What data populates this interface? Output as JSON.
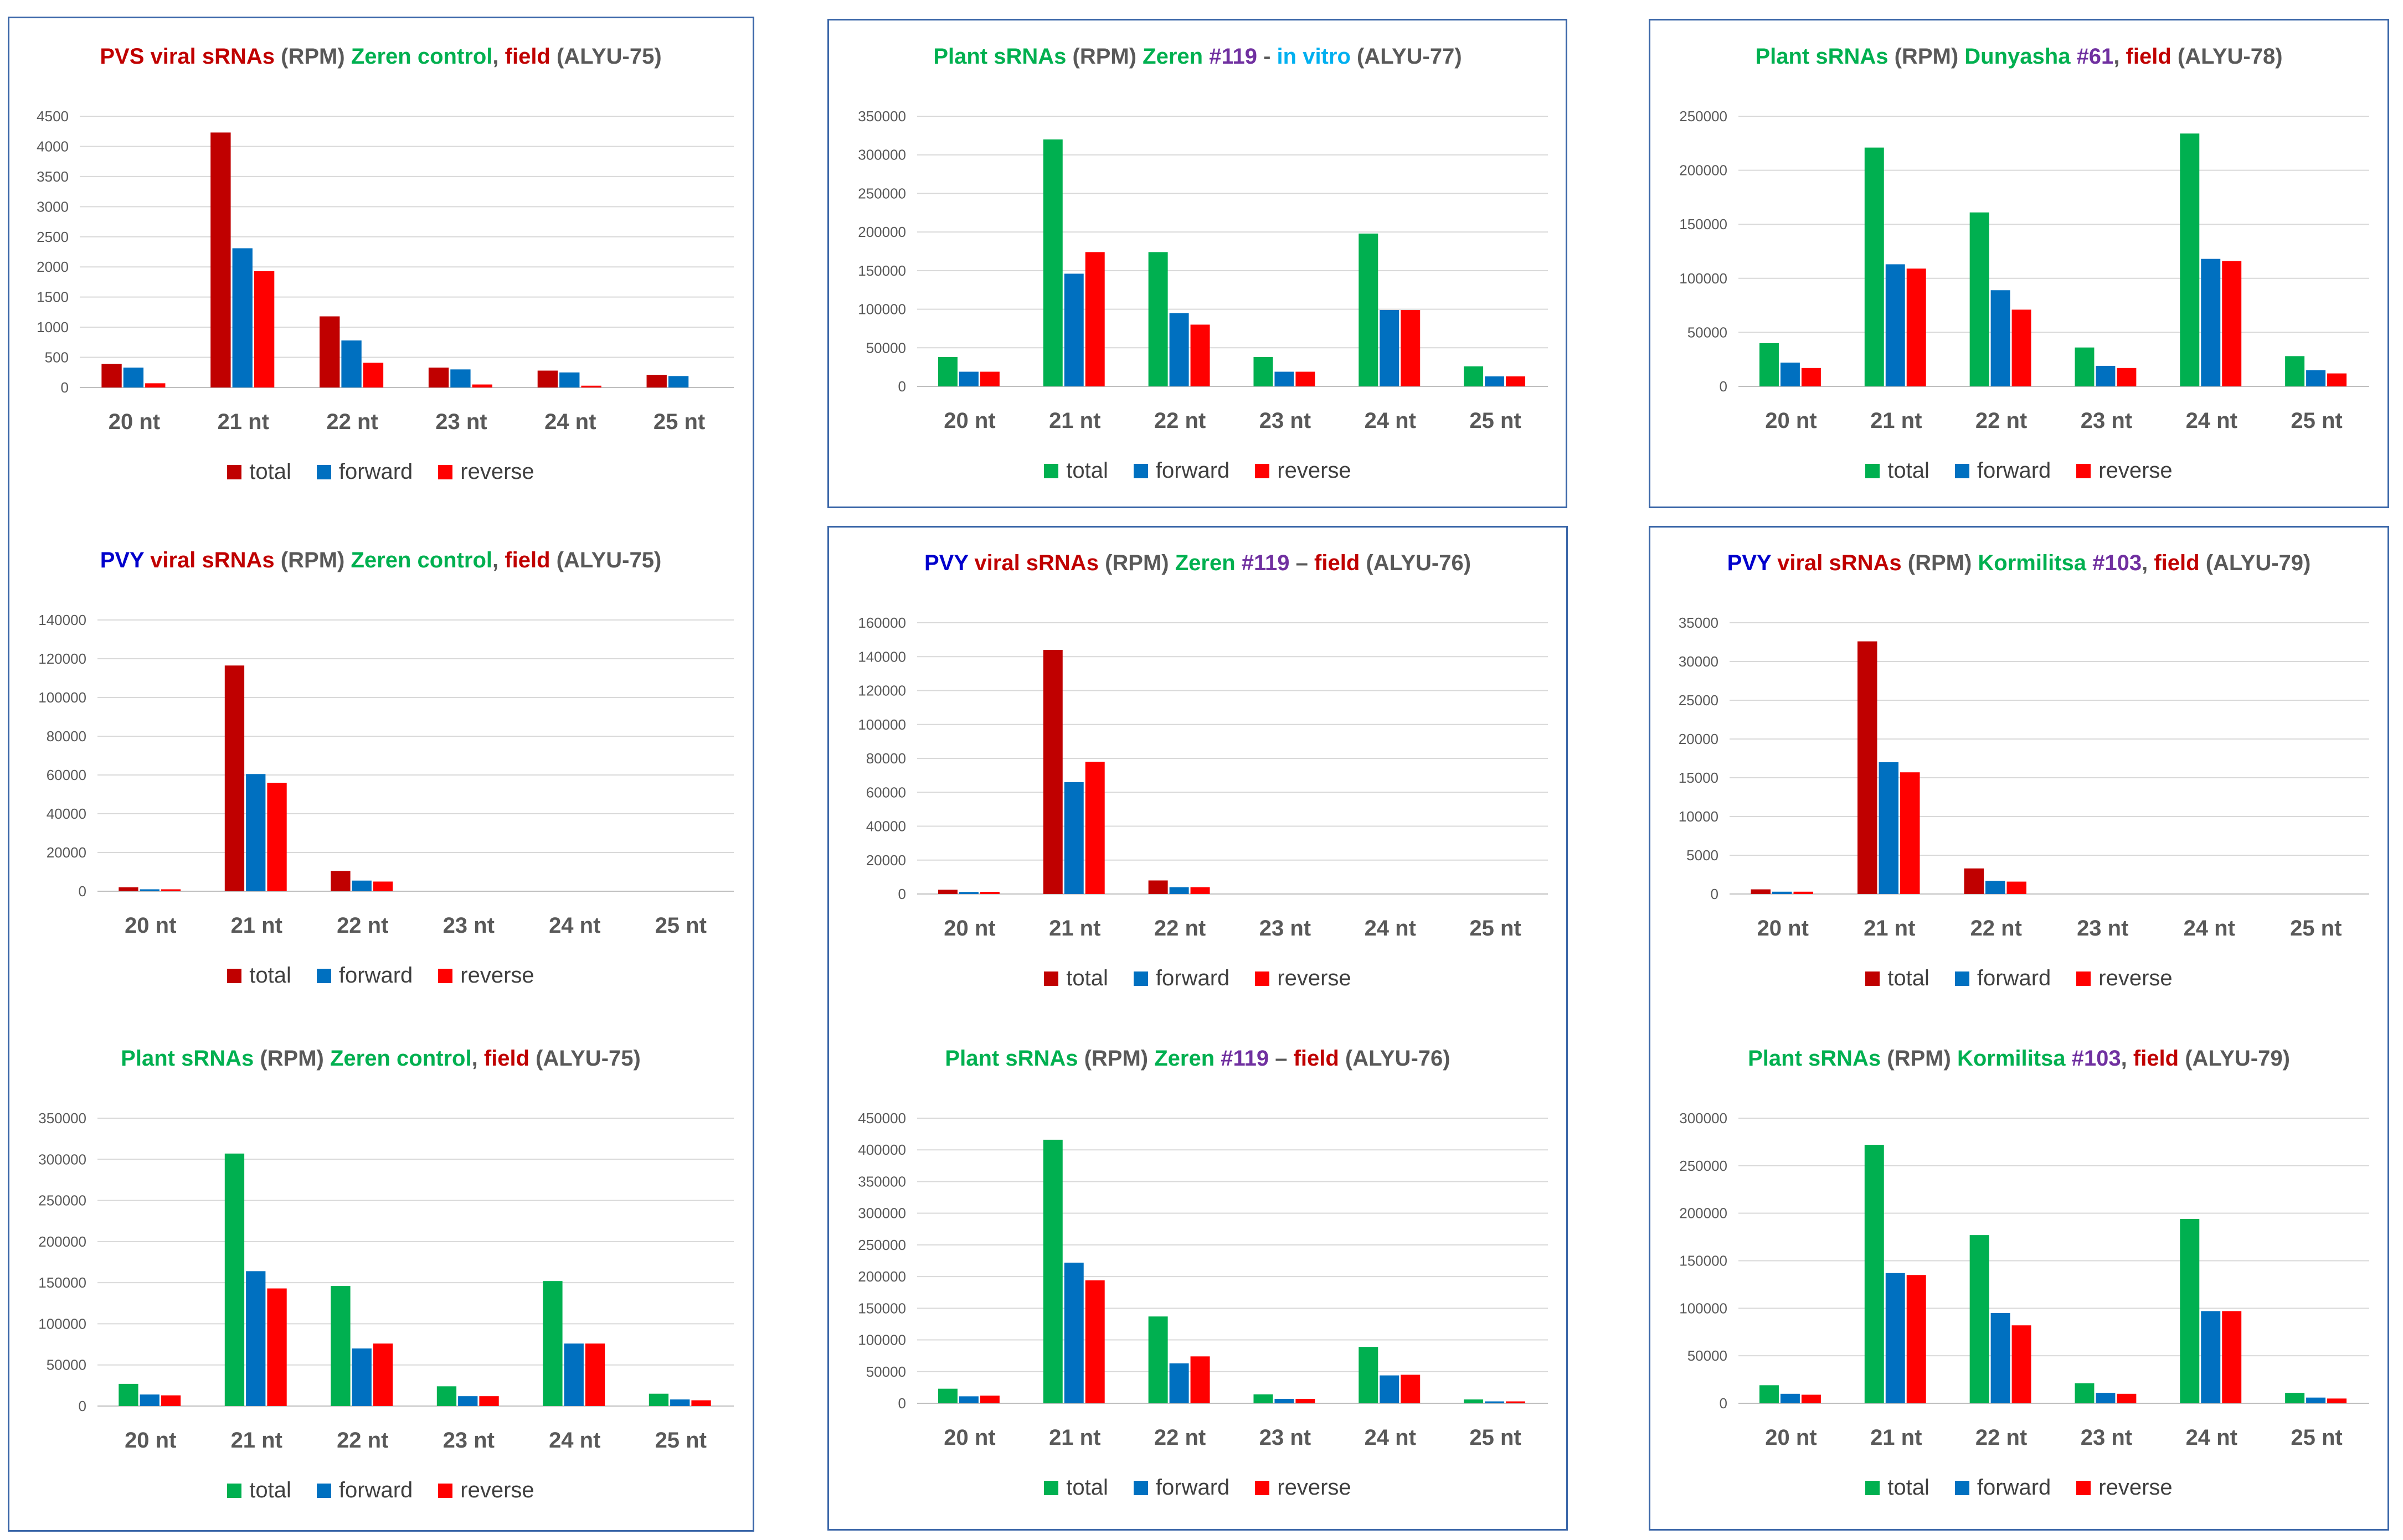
{
  "colors": {
    "dark_red": "#c00000",
    "red": "#ff0000",
    "blue": "#0070c0",
    "green": "#00b050",
    "navy": "#0000cc",
    "purple": "#7030a0",
    "cyan": "#00b0f0",
    "gray": "#595959"
  },
  "charts": [
    {
      "title_segments": [
        {
          "text": "PVS viral sRNAs",
          "color": "#c00000"
        },
        {
          "text": " (RPM) ",
          "color": "#595959"
        },
        {
          "text": "Zeren control",
          "color": "#00b050"
        },
        {
          "text": ", ",
          "color": "#595959"
        },
        {
          "text": "field",
          "color": "#c00000"
        },
        {
          "text": " (ALYU-75)",
          "color": "#595959"
        }
      ],
      "legend": [
        {
          "label": "total",
          "color": "#c00000"
        },
        {
          "label": "forward",
          "color": "#0070c0"
        },
        {
          "label": "reverse",
          "color": "#ff0000"
        }
      ]
    },
    {
      "title_segments": [
        {
          "text": "Plant sRNAs",
          "color": "#00b050"
        },
        {
          "text": " (RPM) ",
          "color": "#595959"
        },
        {
          "text": "Zeren ",
          "color": "#00b050"
        },
        {
          "text": "#119",
          "color": "#7030a0"
        },
        {
          "text": " - ",
          "color": "#595959"
        },
        {
          "text": "in vitro",
          "color": "#00b0f0"
        },
        {
          "text": " (ALYU-77)",
          "color": "#595959"
        }
      ],
      "legend": [
        {
          "label": "total",
          "color": "#00b050"
        },
        {
          "label": "forward",
          "color": "#0070c0"
        },
        {
          "label": "reverse",
          "color": "#ff0000"
        }
      ]
    },
    {
      "title_segments": [
        {
          "text": "Plant sRNAs",
          "color": "#00b050"
        },
        {
          "text": " (RPM) ",
          "color": "#595959"
        },
        {
          "text": "Dunyasha ",
          "color": "#00b050"
        },
        {
          "text": "#61",
          "color": "#7030a0"
        },
        {
          "text": ", ",
          "color": "#595959"
        },
        {
          "text": "field",
          "color": "#c00000"
        },
        {
          "text": " (ALYU-78)",
          "color": "#595959"
        }
      ],
      "legend": [
        {
          "label": "total",
          "color": "#00b050"
        },
        {
          "label": "forward",
          "color": "#0070c0"
        },
        {
          "label": "reverse",
          "color": "#ff0000"
        }
      ]
    },
    {
      "title_segments": [
        {
          "text": "PVY ",
          "color": "#0000cc"
        },
        {
          "text": "viral sRNAs",
          "color": "#c00000"
        },
        {
          "text": " (RPM) ",
          "color": "#595959"
        },
        {
          "text": "Zeren control",
          "color": "#00b050"
        },
        {
          "text": ", ",
          "color": "#595959"
        },
        {
          "text": "field",
          "color": "#c00000"
        },
        {
          "text": " (ALYU-75)",
          "color": "#595959"
        }
      ],
      "legend": [
        {
          "label": "total",
          "color": "#c00000"
        },
        {
          "label": "forward",
          "color": "#0070c0"
        },
        {
          "label": "reverse",
          "color": "#ff0000"
        }
      ]
    },
    {
      "title_segments": [
        {
          "text": "PVY ",
          "color": "#0000cc"
        },
        {
          "text": "viral sRNAs",
          "color": "#c00000"
        },
        {
          "text": " (RPM) ",
          "color": "#595959"
        },
        {
          "text": "Zeren ",
          "color": "#00b050"
        },
        {
          "text": "#119",
          "color": "#7030a0"
        },
        {
          "text": " – ",
          "color": "#595959"
        },
        {
          "text": "field",
          "color": "#c00000"
        },
        {
          "text": " (ALYU-76)",
          "color": "#595959"
        }
      ],
      "legend": [
        {
          "label": "total",
          "color": "#c00000"
        },
        {
          "label": "forward",
          "color": "#0070c0"
        },
        {
          "label": "reverse",
          "color": "#ff0000"
        }
      ]
    },
    {
      "title_segments": [
        {
          "text": "PVY ",
          "color": "#0000cc"
        },
        {
          "text": "viral sRNAs",
          "color": "#c00000"
        },
        {
          "text": " (RPM) ",
          "color": "#595959"
        },
        {
          "text": "Kormilitsa ",
          "color": "#00b050"
        },
        {
          "text": "#103",
          "color": "#7030a0"
        },
        {
          "text": ", ",
          "color": "#595959"
        },
        {
          "text": "field",
          "color": "#c00000"
        },
        {
          "text": " (ALYU-79)",
          "color": "#595959"
        }
      ],
      "legend": [
        {
          "label": "total",
          "color": "#c00000"
        },
        {
          "label": "forward",
          "color": "#0070c0"
        },
        {
          "label": "reverse",
          "color": "#ff0000"
        }
      ]
    },
    {
      "title_segments": [
        {
          "text": "Plant sRNAs",
          "color": "#00b050"
        },
        {
          "text": " (RPM) ",
          "color": "#595959"
        },
        {
          "text": "Zeren control",
          "color": "#00b050"
        },
        {
          "text": ", ",
          "color": "#595959"
        },
        {
          "text": "field",
          "color": "#c00000"
        },
        {
          "text": " (ALYU-75)",
          "color": "#595959"
        }
      ],
      "legend": [
        {
          "label": "total",
          "color": "#00b050"
        },
        {
          "label": "forward",
          "color": "#0070c0"
        },
        {
          "label": "reverse",
          "color": "#ff0000"
        }
      ]
    },
    {
      "title_segments": [
        {
          "text": "Plant sRNAs",
          "color": "#00b050"
        },
        {
          "text": " (RPM) ",
          "color": "#595959"
        },
        {
          "text": "Zeren ",
          "color": "#00b050"
        },
        {
          "text": "#119",
          "color": "#7030a0"
        },
        {
          "text": " – ",
          "color": "#595959"
        },
        {
          "text": "field",
          "color": "#c00000"
        },
        {
          "text": " (ALYU-76)",
          "color": "#595959"
        }
      ],
      "legend": [
        {
          "label": "total",
          "color": "#00b050"
        },
        {
          "label": "forward",
          "color": "#0070c0"
        },
        {
          "label": "reverse",
          "color": "#ff0000"
        }
      ]
    },
    {
      "title_segments": [
        {
          "text": "Plant sRNAs",
          "color": "#00b050"
        },
        {
          "text": " (RPM) ",
          "color": "#595959"
        },
        {
          "text": "Kormilitsa ",
          "color": "#00b050"
        },
        {
          "text": "#103",
          "color": "#7030a0"
        },
        {
          "text": ", ",
          "color": "#595959"
        },
        {
          "text": "field",
          "color": "#c00000"
        },
        {
          "text": " (ALYU-79)",
          "color": "#595959"
        }
      ],
      "legend": [
        {
          "label": "total",
          "color": "#00b050"
        },
        {
          "label": "forward",
          "color": "#0070c0"
        },
        {
          "label": "reverse",
          "color": "#ff0000"
        }
      ]
    }
  ],
  "chart_data": [
    {
      "type": "bar",
      "title": "PVS viral sRNAs (RPM) Zeren control, field (ALYU-75)",
      "categories": [
        "20 nt",
        "21 nt",
        "22 nt",
        "23 nt",
        "24 nt",
        "25 nt"
      ],
      "ylim": [
        0,
        4500
      ],
      "yticks": [
        "0",
        "500",
        "1000",
        "1500",
        "2000",
        "2500",
        "3000",
        "3500",
        "4000",
        "4500"
      ],
      "grid": true,
      "legend_position": "bottom",
      "series": [
        {
          "name": "total",
          "color": "#c00000",
          "values": [
            390,
            4230,
            1180,
            330,
            280,
            210
          ]
        },
        {
          "name": "forward",
          "color": "#0070c0",
          "values": [
            330,
            2310,
            780,
            300,
            250,
            190
          ]
        },
        {
          "name": "reverse",
          "color": "#ff0000",
          "values": [
            70,
            1930,
            410,
            50,
            30,
            0
          ]
        }
      ]
    },
    {
      "type": "bar",
      "title": "Plant sRNAs (RPM) Zeren #119 - in vitro (ALYU-77)",
      "categories": [
        "20 nt",
        "21 nt",
        "22 nt",
        "23 nt",
        "24 nt",
        "25 nt"
      ],
      "ylim": [
        0,
        350000
      ],
      "yticks": [
        "0",
        "50000",
        "100000",
        "150000",
        "200000",
        "250000",
        "300000",
        "350000"
      ],
      "grid": true,
      "legend_position": "bottom",
      "series": [
        {
          "name": "total",
          "color": "#00b050",
          "values": [
            38000,
            320000,
            174000,
            38000,
            198000,
            26000
          ]
        },
        {
          "name": "forward",
          "color": "#0070c0",
          "values": [
            19000,
            146000,
            95000,
            19000,
            99000,
            13000
          ]
        },
        {
          "name": "reverse",
          "color": "#ff0000",
          "values": [
            19000,
            174000,
            80000,
            19000,
            99000,
            13000
          ]
        }
      ]
    },
    {
      "type": "bar",
      "title": "Plant sRNAs (RPM) Dunyasha #61, field (ALYU-78)",
      "categories": [
        "20 nt",
        "21 nt",
        "22 nt",
        "23 nt",
        "24 nt",
        "25 nt"
      ],
      "ylim": [
        0,
        250000
      ],
      "yticks": [
        "0",
        "50000",
        "100000",
        "150000",
        "200000",
        "250000"
      ],
      "grid": true,
      "legend_position": "bottom",
      "series": [
        {
          "name": "total",
          "color": "#00b050",
          "values": [
            40000,
            221000,
            161000,
            36000,
            234000,
            28000
          ]
        },
        {
          "name": "forward",
          "color": "#0070c0",
          "values": [
            22000,
            113000,
            89000,
            19000,
            118000,
            15000
          ]
        },
        {
          "name": "reverse",
          "color": "#ff0000",
          "values": [
            17000,
            109000,
            71000,
            17000,
            116000,
            12000
          ]
        }
      ]
    },
    {
      "type": "bar",
      "title": "PVY viral sRNAs (RPM) Zeren control, field (ALYU-75)",
      "categories": [
        "20 nt",
        "21 nt",
        "22 nt",
        "23 nt",
        "24 nt",
        "25 nt"
      ],
      "ylim": [
        0,
        140000
      ],
      "yticks": [
        "0",
        "20000",
        "40000",
        "60000",
        "80000",
        "100000",
        "120000",
        "140000"
      ],
      "grid": true,
      "legend_position": "bottom",
      "series": [
        {
          "name": "total",
          "color": "#c00000",
          "values": [
            2000,
            116500,
            10500,
            0,
            0,
            0
          ]
        },
        {
          "name": "forward",
          "color": "#0070c0",
          "values": [
            1000,
            60500,
            5500,
            0,
            0,
            0
          ]
        },
        {
          "name": "reverse",
          "color": "#ff0000",
          "values": [
            1000,
            56000,
            5000,
            0,
            0,
            0
          ]
        }
      ]
    },
    {
      "type": "bar",
      "title": "PVY viral sRNAs (RPM) Zeren #119 – field (ALYU-76)",
      "categories": [
        "20 nt",
        "21 nt",
        "22 nt",
        "23 nt",
        "24 nt",
        "25 nt"
      ],
      "ylim": [
        0,
        160000
      ],
      "yticks": [
        "0",
        "20000",
        "40000",
        "60000",
        "80000",
        "100000",
        "120000",
        "140000",
        "160000"
      ],
      "grid": true,
      "legend_position": "bottom",
      "series": [
        {
          "name": "total",
          "color": "#c00000",
          "values": [
            2500,
            144000,
            8000,
            0,
            0,
            0
          ]
        },
        {
          "name": "forward",
          "color": "#0070c0",
          "values": [
            1200,
            66000,
            4000,
            0,
            0,
            0
          ]
        },
        {
          "name": "reverse",
          "color": "#ff0000",
          "values": [
            1300,
            78000,
            4000,
            0,
            0,
            0
          ]
        }
      ]
    },
    {
      "type": "bar",
      "title": "PVY viral sRNAs (RPM) Kormilitsa #103, field (ALYU-79)",
      "categories": [
        "20 nt",
        "21 nt",
        "22 nt",
        "23 nt",
        "24 nt",
        "25 nt"
      ],
      "ylim": [
        0,
        35000
      ],
      "yticks": [
        "0",
        "5000",
        "10000",
        "15000",
        "20000",
        "25000",
        "30000",
        "35000"
      ],
      "grid": true,
      "legend_position": "bottom",
      "series": [
        {
          "name": "total",
          "color": "#c00000",
          "values": [
            600,
            32600,
            3300,
            0,
            0,
            0
          ]
        },
        {
          "name": "forward",
          "color": "#0070c0",
          "values": [
            300,
            17000,
            1700,
            0,
            0,
            0
          ]
        },
        {
          "name": "reverse",
          "color": "#ff0000",
          "values": [
            300,
            15700,
            1600,
            0,
            0,
            0
          ]
        }
      ]
    },
    {
      "type": "bar",
      "title": "Plant sRNAs (RPM) Zeren control, field (ALYU-75)",
      "categories": [
        "20 nt",
        "21 nt",
        "22 nt",
        "23 nt",
        "24 nt",
        "25 nt"
      ],
      "ylim": [
        0,
        350000
      ],
      "yticks": [
        "0",
        "50000",
        "100000",
        "150000",
        "200000",
        "250000",
        "300000",
        "350000"
      ],
      "grid": true,
      "legend_position": "bottom",
      "series": [
        {
          "name": "total",
          "color": "#00b050",
          "values": [
            27000,
            307000,
            146000,
            24000,
            152000,
            15000
          ]
        },
        {
          "name": "forward",
          "color": "#0070c0",
          "values": [
            14000,
            164000,
            70000,
            12000,
            76000,
            8000
          ]
        },
        {
          "name": "reverse",
          "color": "#ff0000",
          "values": [
            13000,
            143000,
            76000,
            12000,
            76000,
            7000
          ]
        }
      ]
    },
    {
      "type": "bar",
      "title": "Plant sRNAs (RPM) Zeren #119 – field (ALYU-76)",
      "categories": [
        "20 nt",
        "21 nt",
        "22 nt",
        "23 nt",
        "24 nt",
        "25 nt"
      ],
      "ylim": [
        0,
        450000
      ],
      "yticks": [
        "0",
        "50000",
        "100000",
        "150000",
        "200000",
        "250000",
        "300000",
        "350000",
        "400000",
        "450000"
      ],
      "grid": true,
      "legend_position": "bottom",
      "series": [
        {
          "name": "total",
          "color": "#00b050",
          "values": [
            23000,
            416000,
            137000,
            14000,
            89000,
            6000
          ]
        },
        {
          "name": "forward",
          "color": "#0070c0",
          "values": [
            11000,
            222000,
            63000,
            7000,
            44000,
            3000
          ]
        },
        {
          "name": "reverse",
          "color": "#ff0000",
          "values": [
            12000,
            194000,
            74000,
            7000,
            45000,
            3000
          ]
        }
      ]
    },
    {
      "type": "bar",
      "title": "Plant sRNAs (RPM) Kormilitsa #103, field (ALYU-79)",
      "categories": [
        "20 nt",
        "21 nt",
        "22 nt",
        "23 nt",
        "24 nt",
        "25 nt"
      ],
      "ylim": [
        0,
        300000
      ],
      "yticks": [
        "0",
        "50000",
        "100000",
        "150000",
        "200000",
        "250000",
        "300000"
      ],
      "grid": true,
      "legend_position": "bottom",
      "series": [
        {
          "name": "total",
          "color": "#00b050",
          "values": [
            19000,
            272000,
            177000,
            21000,
            194000,
            11000
          ]
        },
        {
          "name": "forward",
          "color": "#0070c0",
          "values": [
            10000,
            137000,
            95000,
            11000,
            97000,
            6000
          ]
        },
        {
          "name": "reverse",
          "color": "#ff0000",
          "values": [
            9000,
            135000,
            82000,
            10000,
            97000,
            5000
          ]
        }
      ]
    }
  ]
}
